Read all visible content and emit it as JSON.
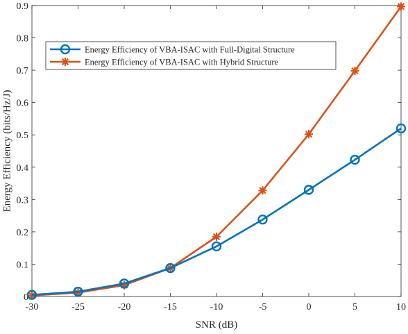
{
  "chart_data": {
    "type": "line",
    "title": "",
    "xlabel": "SNR (dB)",
    "ylabel": "Energy Efficiency (bits/Hz/J)",
    "x": [
      -30,
      -25,
      -20,
      -15,
      -10,
      -5,
      0,
      5,
      10
    ],
    "xlim": [
      -30,
      10
    ],
    "ylim": [
      0,
      0.9
    ],
    "xticks": [
      -30,
      -25,
      -20,
      -15,
      -10,
      -5,
      0,
      5,
      10
    ],
    "xtick_labels": [
      "-30",
      "-25",
      "-20",
      "-15",
      "-10",
      "-5",
      "0",
      "5",
      "10"
    ],
    "yticks": [
      0,
      0.1,
      0.2,
      0.3,
      0.4,
      0.5,
      0.6,
      0.7,
      0.8,
      0.9
    ],
    "ytick_labels": [
      "0",
      "0.1",
      "0.2",
      "0.3",
      "0.4",
      "0.5",
      "0.6",
      "0.7",
      "0.8",
      "0.9"
    ],
    "grid": false,
    "box": true,
    "legend_position": "upper-left",
    "series": [
      {
        "name": "Energy Efficiency of VBA-ISAC with Full-Digital Structure",
        "values": [
          0.005,
          0.015,
          0.04,
          0.088,
          0.155,
          0.238,
          0.33,
          0.423,
          0.52
        ],
        "color": "#0072BD",
        "marker": "circle"
      },
      {
        "name": "Energy Efficiency of VBA-ISAC with Hybrid Structure",
        "values": [
          0.003,
          0.012,
          0.035,
          0.088,
          0.185,
          0.328,
          0.502,
          0.698,
          0.897
        ],
        "color": "#D95319",
        "marker": "asterisk"
      }
    ]
  }
}
